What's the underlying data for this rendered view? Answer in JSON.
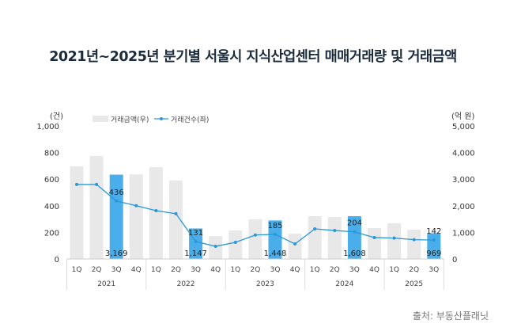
{
  "title": "2021년~2025년 분기별 서울시 지식산업센터 매매거래량 및 거래금액",
  "source": "출처: 부동산플래닛",
  "colors": {
    "bar": "#e8e8e8",
    "bar_highlight": "#4aaeea",
    "line": "#2a97d6",
    "title": "#1b2b3c"
  },
  "chart_data": {
    "type": "bar+line",
    "title": "2021년~2025년 분기별 서울시 지식산업센터 매매거래량 및 거래금액",
    "left_axis": {
      "unit": "(건)",
      "range": [
        0,
        1000
      ],
      "ticks": [
        "0",
        "200",
        "400",
        "600",
        "800",
        "1,000"
      ]
    },
    "right_axis": {
      "unit": "(억 원)",
      "range": [
        0,
        5000
      ],
      "ticks": [
        "0",
        "1,000",
        "2,000",
        "3,000",
        "4,000",
        "5,000"
      ]
    },
    "years": [
      "2021",
      "2022",
      "2023",
      "2024",
      "2025"
    ],
    "categories": [
      {
        "year": "2021",
        "q": "1Q"
      },
      {
        "year": "2021",
        "q": "2Q"
      },
      {
        "year": "2021",
        "q": "3Q"
      },
      {
        "year": "2021",
        "q": "4Q"
      },
      {
        "year": "2022",
        "q": "1Q"
      },
      {
        "year": "2022",
        "q": "2Q"
      },
      {
        "year": "2022",
        "q": "3Q"
      },
      {
        "year": "2022",
        "q": "4Q"
      },
      {
        "year": "2023",
        "q": "1Q"
      },
      {
        "year": "2023",
        "q": "2Q"
      },
      {
        "year": "2023",
        "q": "3Q"
      },
      {
        "year": "2023",
        "q": "4Q"
      },
      {
        "year": "2024",
        "q": "1Q"
      },
      {
        "year": "2024",
        "q": "2Q"
      },
      {
        "year": "2024",
        "q": "3Q"
      },
      {
        "year": "2024",
        "q": "4Q"
      },
      {
        "year": "2025",
        "q": "1Q"
      },
      {
        "year": "2025",
        "q": "2Q"
      },
      {
        "year": "2025",
        "q": "3Q"
      }
    ],
    "legend": {
      "placement": "top-left",
      "entries": [
        "거래금액(우)",
        "거래건수(좌)"
      ]
    },
    "series": [
      {
        "name": "거래금액(우)",
        "type": "bar",
        "axis": "right",
        "values": [
          3480,
          3870,
          3169,
          3180,
          3450,
          2950,
          1147,
          860,
          1070,
          1490,
          1448,
          950,
          1610,
          1580,
          1608,
          1160,
          1340,
          1100,
          969
        ],
        "highlight": [
          2,
          6,
          10,
          14,
          18
        ],
        "labels": {
          "2": "3,169",
          "6": "1,147",
          "10": "1,448",
          "14": "1,608",
          "18": "969"
        }
      },
      {
        "name": "거래건수(좌)",
        "type": "line",
        "axis": "left",
        "values": [
          560,
          560,
          436,
          400,
          363,
          340,
          131,
          95,
          125,
          180,
          185,
          113,
          226,
          214,
          204,
          161,
          157,
          145,
          142
        ],
        "labels": {
          "2": "436",
          "6": "131",
          "10": "185",
          "14": "204",
          "18": "142"
        }
      }
    ]
  }
}
